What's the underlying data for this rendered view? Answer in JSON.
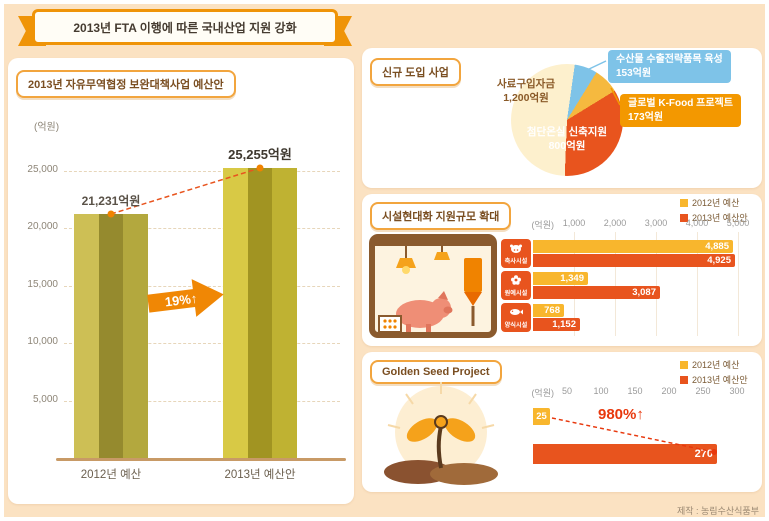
{
  "header": {
    "title": "2013년 FTA 이행에 따른 국내산업 지원 강화"
  },
  "credit": "제작 : 농림수산식품부",
  "panels": {
    "budget": {
      "badge": "2013년 자유무역협정 보완대책사업 예산안"
    },
    "new_projects": {
      "badge": "신규 도입 사업"
    },
    "facility": {
      "badge": "시설현대화 지원규모 확대"
    },
    "golden_seed": {
      "badge": "Golden Seed Project"
    }
  },
  "colors": {
    "background": "#fbe2c2",
    "ribbon_orange": "#ef9408",
    "bar_yellow_2012": "#f8b62d",
    "bar_red_2013": "#e8541e",
    "olive_bar_light": "#cdbf55",
    "olive_bar_dark": "#958a2e",
    "growth_red": "#e8380d",
    "tag_blue": "#7ec3e8",
    "tag_orange": "#f39800"
  },
  "chart_data": [
    {
      "type": "bar",
      "title": "2013년 자유무역협정 보완대책사업 예산안",
      "unit": "(억원)",
      "categories": [
        "2012년 예산",
        "2013년 예산안"
      ],
      "values": [
        21231,
        25255
      ],
      "value_labels": [
        "21,231억원",
        "25,255억원"
      ],
      "ytick_labels": [
        "25,000",
        "20,000",
        "15,000",
        "10,000",
        "5,000"
      ],
      "ylim": [
        0,
        27000
      ],
      "grid": true,
      "growth_label": "19%↑"
    },
    {
      "type": "pie",
      "title": "신규 도입 사업",
      "slices": [
        {
          "label": "사료구입자금",
          "value": 1200,
          "value_label": "1,200억원",
          "color": "#fdf0cd"
        },
        {
          "label": "수산물 수출전략품목 육성",
          "value": 153,
          "value_label": "153억원",
          "color": "#7ec3e8"
        },
        {
          "label": "글로벌 K-Food 프로젝트",
          "value": 173,
          "value_label": "173억원",
          "color": "#f5b93f"
        },
        {
          "label": "첨단온실 신축지원",
          "value": 800,
          "value_label": "800억원",
          "color": "#e8541e"
        }
      ]
    },
    {
      "type": "bar",
      "orientation": "horizontal",
      "title": "시설현대화 지원규모 확대",
      "unit": "(억원)",
      "categories": [
        "축사시설",
        "원예시설",
        "양식시설"
      ],
      "series": [
        {
          "name": "2012년 예산",
          "color": "#f8b62d",
          "values": [
            4885,
            1349,
            768
          ],
          "value_labels": [
            "4,885",
            "1,349",
            "768"
          ]
        },
        {
          "name": "2013년 예산안",
          "color": "#e8541e",
          "values": [
            4925,
            3087,
            1152
          ],
          "value_labels": [
            "4,925",
            "3,087",
            "1,152"
          ]
        }
      ],
      "xtick_labels": [
        "1,000",
        "2,000",
        "3,000",
        "4,000",
        "5,000"
      ],
      "xlim": [
        0,
        5000
      ],
      "legend_position": "top-right",
      "grid": true
    },
    {
      "type": "bar",
      "orientation": "horizontal",
      "title": "Golden Seed Project",
      "unit": "(억원)",
      "series": [
        {
          "name": "2012년 예산",
          "color": "#f8b62d",
          "values": [
            25
          ],
          "value_labels": [
            "25"
          ]
        },
        {
          "name": "2013년 예산안",
          "color": "#e8541e",
          "values": [
            270
          ],
          "value_labels": [
            "270"
          ]
        }
      ],
      "xtick_labels": [
        "50",
        "100",
        "150",
        "200",
        "250",
        "300"
      ],
      "xlim": [
        0,
        300
      ],
      "legend_position": "top-right",
      "growth_label": "980%↑"
    }
  ]
}
